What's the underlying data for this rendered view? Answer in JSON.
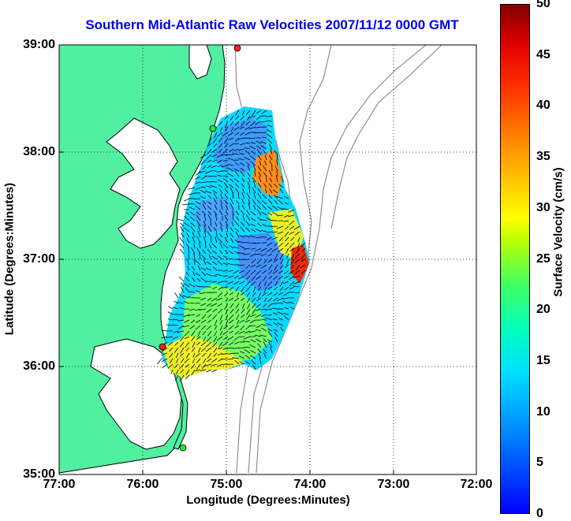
{
  "title": "Southern Mid-Atlantic Raw Velocities 2007/11/12 0000 GMT",
  "x_axis": {
    "label": "Longitude (Degrees:Minutes)",
    "ticks": [
      "77:00",
      "76:00",
      "75:00",
      "74:00",
      "73:00",
      "72:00"
    ]
  },
  "y_axis": {
    "label": "Latitude (Degrees:Minutes)",
    "ticks": [
      "39:00",
      "38:00",
      "37:00",
      "36:00",
      "35:00"
    ]
  },
  "colorbar": {
    "label": "Surface Velocity (cm/s)",
    "ticks": [
      "50",
      "45",
      "40",
      "35",
      "30",
      "25",
      "20",
      "15",
      "10",
      "5",
      "0"
    ],
    "range": [
      0,
      50
    ]
  },
  "colors": {
    "land": "#50f0a0",
    "coastline": "#000000",
    "bathymetry": "#909090",
    "vectors": "#000000",
    "station_red": "#ff2020",
    "station_green": "#30e030",
    "title": "#0000ee"
  },
  "map": {
    "lon_range": [
      -77.0,
      -72.0
    ],
    "lat_range": [
      35.0,
      39.0
    ],
    "grid": "dotted",
    "stations": [
      {
        "lon": -74.88,
        "lat": 39.0,
        "color": "red"
      },
      {
        "lon": -75.17,
        "lat": 38.25,
        "color": "green"
      },
      {
        "lon": -75.73,
        "lat": 36.18,
        "color": "red"
      },
      {
        "lon": -75.47,
        "lat": 35.25,
        "color": "green"
      }
    ]
  }
}
